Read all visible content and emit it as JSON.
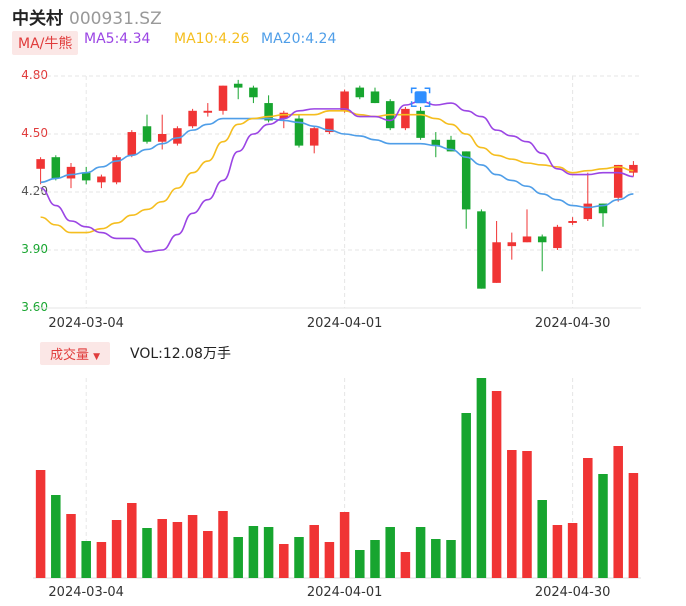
{
  "header": {
    "name": "中关村",
    "code": "000931.SZ"
  },
  "legend": {
    "mode_label": "MA/牛熊",
    "ma5_label": "MA5:4.34",
    "ma10_label": "MA10:4.26",
    "ma20_label": "MA20:4.24"
  },
  "colors": {
    "up": "#f03434",
    "down": "#17a52f",
    "ma5": "#9b45e4",
    "ma10": "#f5be1f",
    "ma20": "#4f9ee8",
    "grid": "#e6e6e6"
  },
  "volume_panel": {
    "label": "成交量",
    "value_text": "VOL:12.08万手"
  },
  "chart_data": {
    "type": "candlestick",
    "ylim": [
      3.6,
      4.8
    ],
    "y_ticks": [
      "4.80",
      "4.50",
      "4.20",
      "3.90",
      "3.60"
    ],
    "x_ticks": [
      {
        "index": 3,
        "label": "2024-03-04"
      },
      {
        "index": 20,
        "label": "2024-04-01"
      },
      {
        "index": 35,
        "label": "2024-04-30"
      }
    ],
    "candles": [
      {
        "o": 4.32,
        "h": 4.38,
        "l": 4.24,
        "c": 4.37,
        "v": 108
      },
      {
        "o": 4.38,
        "h": 4.39,
        "l": 4.26,
        "c": 4.27,
        "v": 83
      },
      {
        "o": 4.27,
        "h": 4.35,
        "l": 4.22,
        "c": 4.33,
        "v": 64
      },
      {
        "o": 4.3,
        "h": 4.33,
        "l": 4.24,
        "c": 4.26,
        "v": 37
      },
      {
        "o": 4.25,
        "h": 4.29,
        "l": 4.22,
        "c": 4.28,
        "v": 36
      },
      {
        "o": 4.25,
        "h": 4.39,
        "l": 4.24,
        "c": 4.38,
        "v": 58
      },
      {
        "o": 4.39,
        "h": 4.52,
        "l": 4.38,
        "c": 4.51,
        "v": 75
      },
      {
        "o": 4.54,
        "h": 4.6,
        "l": 4.45,
        "c": 4.46,
        "v": 50
      },
      {
        "o": 4.46,
        "h": 4.6,
        "l": 4.42,
        "c": 4.5,
        "v": 59
      },
      {
        "o": 4.45,
        "h": 4.54,
        "l": 4.44,
        "c": 4.53,
        "v": 56
      },
      {
        "o": 4.54,
        "h": 4.63,
        "l": 4.53,
        "c": 4.62,
        "v": 63
      },
      {
        "o": 4.61,
        "h": 4.66,
        "l": 4.59,
        "c": 4.62,
        "v": 47
      },
      {
        "o": 4.62,
        "h": 4.75,
        "l": 4.6,
        "c": 4.75,
        "v": 67
      },
      {
        "o": 4.76,
        "h": 4.78,
        "l": 4.68,
        "c": 4.74,
        "v": 41
      },
      {
        "o": 4.74,
        "h": 4.75,
        "l": 4.66,
        "c": 4.69,
        "v": 52
      },
      {
        "o": 4.66,
        "h": 4.7,
        "l": 4.56,
        "c": 4.57,
        "v": 51
      },
      {
        "o": 4.58,
        "h": 4.62,
        "l": 4.53,
        "c": 4.61,
        "v": 34
      },
      {
        "o": 4.58,
        "h": 4.6,
        "l": 4.43,
        "c": 4.44,
        "v": 41
      },
      {
        "o": 4.44,
        "h": 4.54,
        "l": 4.4,
        "c": 4.53,
        "v": 53
      },
      {
        "o": 4.51,
        "h": 4.58,
        "l": 4.5,
        "c": 4.58,
        "v": 36
      },
      {
        "o": 4.62,
        "h": 4.73,
        "l": 4.61,
        "c": 4.72,
        "v": 66
      },
      {
        "o": 4.74,
        "h": 4.75,
        "l": 4.68,
        "c": 4.69,
        "v": 28
      },
      {
        "o": 4.72,
        "h": 4.74,
        "l": 4.66,
        "c": 4.66,
        "v": 38
      },
      {
        "o": 4.67,
        "h": 4.68,
        "l": 4.52,
        "c": 4.53,
        "v": 51
      },
      {
        "o": 4.53,
        "h": 4.64,
        "l": 4.52,
        "c": 4.63,
        "v": 26
      },
      {
        "o": 4.62,
        "h": 4.64,
        "l": 4.47,
        "c": 4.48,
        "v": 51
      },
      {
        "o": 4.47,
        "h": 4.51,
        "l": 4.38,
        "c": 4.44,
        "v": 39
      },
      {
        "o": 4.47,
        "h": 4.49,
        "l": 4.41,
        "c": 4.41,
        "v": 38
      },
      {
        "o": 4.41,
        "h": 4.41,
        "l": 4.01,
        "c": 4.11,
        "v": 165
      },
      {
        "o": 4.1,
        "h": 4.11,
        "l": 3.7,
        "c": 3.7,
        "v": 200
      },
      {
        "o": 3.73,
        "h": 4.05,
        "l": 3.73,
        "c": 3.94,
        "v": 187
      },
      {
        "o": 3.92,
        "h": 3.99,
        "l": 3.85,
        "c": 3.94,
        "v": 128
      },
      {
        "o": 3.94,
        "h": 4.11,
        "l": 3.94,
        "c": 3.97,
        "v": 127
      },
      {
        "o": 3.97,
        "h": 3.98,
        "l": 3.79,
        "c": 3.94,
        "v": 78
      },
      {
        "o": 3.91,
        "h": 4.03,
        "l": 3.9,
        "c": 4.02,
        "v": 53
      },
      {
        "o": 4.04,
        "h": 4.07,
        "l": 4.03,
        "c": 4.05,
        "v": 55
      },
      {
        "o": 4.06,
        "h": 4.3,
        "l": 4.05,
        "c": 4.14,
        "v": 120
      },
      {
        "o": 4.14,
        "h": 4.14,
        "l": 4.02,
        "c": 4.09,
        "v": 104
      },
      {
        "o": 4.17,
        "h": 4.34,
        "l": 4.15,
        "c": 4.34,
        "v": 132
      },
      {
        "o": 4.3,
        "h": 4.36,
        "l": 4.28,
        "c": 4.34,
        "v": 105
      }
    ],
    "ma5": [
      4.22,
      4.13,
      4.05,
      4.02,
      3.99,
      3.96,
      3.96,
      3.89,
      3.9,
      3.98,
      4.09,
      4.16,
      4.26,
      4.41,
      4.5,
      4.55,
      4.58,
      4.62,
      4.63,
      4.63,
      4.63,
      4.59,
      4.59,
      4.57,
      4.65,
      4.67,
      4.65,
      4.66,
      4.62,
      4.59,
      4.52,
      4.49,
      4.46,
      4.4,
      4.32,
      4.29,
      4.29,
      4.3,
      4.3,
      4.28
    ],
    "ma10": [
      4.07,
      4.03,
      3.99,
      3.99,
      4.01,
      4.04,
      4.08,
      4.11,
      4.15,
      4.22,
      4.3,
      4.36,
      4.46,
      4.55,
      4.58,
      4.59,
      4.6,
      4.6,
      4.6,
      4.62,
      4.62,
      4.6,
      4.59,
      4.6,
      4.6,
      4.6,
      4.58,
      4.55,
      4.5,
      4.43,
      4.39,
      4.37,
      4.35,
      4.34,
      4.33,
      4.3,
      4.31,
      4.32,
      4.33,
      4.31
    ],
    "ma20": [
      4.25,
      4.27,
      4.29,
      4.3,
      4.33,
      4.36,
      4.39,
      4.42,
      4.45,
      4.48,
      4.52,
      4.55,
      4.58,
      4.58,
      4.58,
      4.58,
      4.57,
      4.56,
      4.54,
      4.52,
      4.5,
      4.49,
      4.47,
      4.45,
      4.45,
      4.45,
      4.44,
      4.42,
      4.38,
      4.34,
      4.29,
      4.26,
      4.23,
      4.19,
      4.16,
      4.13,
      4.12,
      4.13,
      4.16,
      4.19
    ]
  }
}
